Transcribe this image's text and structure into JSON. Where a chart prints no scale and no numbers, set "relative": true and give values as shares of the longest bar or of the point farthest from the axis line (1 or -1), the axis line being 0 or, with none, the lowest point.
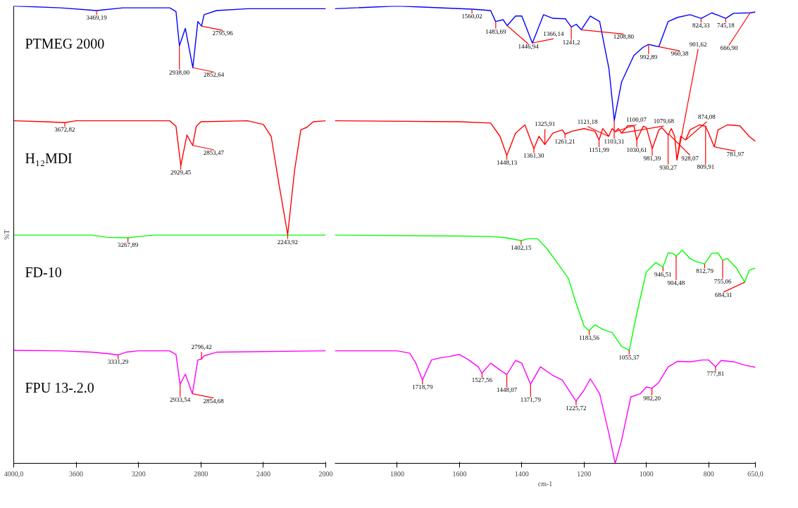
{
  "chart_data": [
    {
      "type": "line",
      "relative": true,
      "ylabel": "%T",
      "xlim": [
        4000,
        2000
      ],
      "xticks": [
        {
          "value": 4000,
          "label": "4000,0"
        },
        3600,
        3200,
        2800,
        2400,
        2000
      ],
      "series": [
        {
          "name": "PTMEG 2000",
          "color": "#0000ff",
          "x": [
            4000,
            3700,
            3469,
            3300,
            3000,
            2960,
            2938,
            2900,
            2852,
            2820,
            2796,
            2780,
            2700,
            2500,
            2000
          ],
          "values": [
            1.0,
            0.996,
            0.99,
            0.996,
            0.996,
            0.988,
            0.913,
            0.951,
            0.865,
            0.966,
            0.956,
            0.981,
            0.99,
            0.994,
            0.994
          ]
        },
        {
          "name": "H₁₂MDI",
          "color": "#ff0000",
          "x": [
            4000,
            3800,
            3673,
            3600,
            3000,
            2960,
            2929,
            2890,
            2853,
            2830,
            2800,
            2500,
            2400,
            2350,
            2300,
            2244,
            2200,
            2160,
            2120,
            2080,
            2000
          ],
          "values": [
            0.749,
            0.747,
            0.745,
            0.749,
            0.749,
            0.737,
            0.651,
            0.718,
            0.695,
            0.737,
            0.747,
            0.749,
            0.741,
            0.715,
            0.611,
            0.5,
            0.64,
            0.729,
            0.735,
            0.747,
            0.749
          ]
        },
        {
          "name": "FD-10",
          "color": "#00ff00",
          "x": [
            4000,
            3500,
            3400,
            3268,
            3200,
            3100,
            2000
          ],
          "values": [
            0.499,
            0.499,
            0.494,
            0.493,
            0.496,
            0.499,
            0.499
          ]
        },
        {
          "name": "FPU 13-.2.0",
          "color": "#ff00ff",
          "x": [
            4000,
            3700,
            3500,
            3400,
            3331,
            3280,
            3200,
            3000,
            2960,
            2934,
            2900,
            2855,
            2820,
            2796,
            2780,
            2700,
            2000
          ],
          "values": [
            0.247,
            0.246,
            0.243,
            0.24,
            0.237,
            0.243,
            0.246,
            0.246,
            0.238,
            0.173,
            0.195,
            0.152,
            0.226,
            0.228,
            0.235,
            0.243,
            0.246
          ]
        }
      ],
      "annotations": [
        {
          "text": "3469,19",
          "x": 3469.19,
          "y": 0.99
        },
        {
          "text": "2938,00",
          "x": 2938.0,
          "y": 0.913
        },
        {
          "text": "2852,64",
          "x": 2852.64,
          "y": 0.865
        },
        {
          "text": "2795,96",
          "x": 2795.96,
          "y": 0.956
        },
        {
          "text": "3672,82",
          "x": 3672.82,
          "y": 0.745
        },
        {
          "text": "2929,45",
          "x": 2929.45,
          "y": 0.651
        },
        {
          "text": "2853,47",
          "x": 2853.47,
          "y": 0.695
        },
        {
          "text": "2243,92",
          "x": 2243.92,
          "y": 0.5
        },
        {
          "text": "3267,89",
          "x": 3267.89,
          "y": 0.493
        },
        {
          "text": "3331,29",
          "x": 3331.29,
          "y": 0.237
        },
        {
          "text": "2933,54",
          "x": 2933.54,
          "y": 0.173
        },
        {
          "text": "2854,68",
          "x": 2854.68,
          "y": 0.152
        },
        {
          "text": "2796,42",
          "x": 2796.42,
          "y": 0.228
        }
      ]
    },
    {
      "type": "line",
      "relative": true,
      "xlabel": "cm-1",
      "xlim": [
        2000,
        650
      ],
      "xticks": [
        1800,
        1600,
        1400,
        1200,
        1000,
        800,
        {
          "value": 650,
          "label": "650,0"
        }
      ],
      "series": [
        {
          "color": "#0000ff",
          "x": [
            2000,
            1800,
            1560,
            1500,
            1484,
            1460,
            1447,
            1420,
            1400,
            1366,
            1330,
            1300,
            1260,
            1241,
            1225,
            1209,
            1180,
            1150,
            1120,
            1103,
            1080,
            1040,
            1010,
            993,
            975,
            960,
            930,
            900,
            860,
            824,
            790,
            745,
            720,
            667,
            650
          ],
          "values": [
            0.994,
            1.0,
            0.993,
            0.99,
            0.966,
            0.97,
            0.957,
            0.978,
            0.978,
            0.919,
            0.981,
            0.973,
            0.972,
            0.954,
            0.96,
            0.948,
            0.978,
            0.966,
            0.862,
            0.75,
            0.833,
            0.892,
            0.91,
            0.916,
            0.913,
            0.911,
            0.966,
            0.975,
            0.981,
            0.973,
            0.985,
            0.973,
            0.984,
            0.985,
            0.987
          ]
        },
        {
          "color": "#ff0000",
          "x": [
            2000,
            1600,
            1500,
            1470,
            1448,
            1420,
            1390,
            1361,
            1345,
            1326,
            1300,
            1270,
            1261,
            1240,
            1200,
            1165,
            1152,
            1140,
            1121,
            1110,
            1100,
            1090,
            1080,
            1060,
            1040,
            1031,
            1010,
            1000,
            981,
            960,
            950,
            930,
            920,
            909,
            902,
            890,
            874,
            860,
            830,
            810,
            800,
            782,
            770,
            740,
            700,
            670,
            650
          ],
          "values": [
            0.749,
            0.747,
            0.744,
            0.715,
            0.673,
            0.722,
            0.74,
            0.688,
            0.715,
            0.697,
            0.722,
            0.729,
            0.72,
            0.726,
            0.732,
            0.726,
            0.707,
            0.732,
            0.715,
            0.732,
            0.725,
            0.732,
            0.722,
            0.738,
            0.738,
            0.707,
            0.737,
            0.734,
            0.688,
            0.729,
            0.734,
            0.718,
            0.732,
            0.715,
            0.663,
            0.715,
            0.707,
            0.729,
            0.74,
            0.737,
            0.722,
            0.692,
            0.729,
            0.74,
            0.738,
            0.715,
            0.704
          ]
        },
        {
          "color": "#00ff00",
          "x": [
            2000,
            1600,
            1500,
            1450,
            1402,
            1380,
            1350,
            1320,
            1280,
            1250,
            1230,
            1200,
            1184,
            1165,
            1140,
            1110,
            1080,
            1055,
            1030,
            1000,
            970,
            955,
            947,
            930,
            915,
            904,
            885,
            860,
            840,
            813,
            790,
            770,
            755,
            740,
            710,
            684,
            670,
            650
          ],
          "values": [
            0.499,
            0.497,
            0.496,
            0.493,
            0.487,
            0.491,
            0.491,
            0.47,
            0.433,
            0.404,
            0.359,
            0.3,
            0.29,
            0.303,
            0.293,
            0.286,
            0.256,
            0.247,
            0.33,
            0.419,
            0.439,
            0.433,
            0.429,
            0.46,
            0.459,
            0.453,
            0.466,
            0.448,
            0.441,
            0.436,
            0.459,
            0.46,
            0.444,
            0.448,
            0.426,
            0.396,
            0.422,
            0.427
          ]
        },
        {
          "color": "#ff00ff",
          "x": [
            2000,
            1800,
            1760,
            1740,
            1719,
            1690,
            1660,
            1630,
            1600,
            1570,
            1540,
            1528,
            1500,
            1470,
            1448,
            1420,
            1400,
            1372,
            1340,
            1300,
            1270,
            1226,
            1200,
            1180,
            1150,
            1120,
            1100,
            1080,
            1050,
            1020,
            1000,
            982,
            960,
            930,
            900,
            860,
            820,
            800,
            778,
            760,
            720,
            680,
            650
          ],
          "values": [
            0.246,
            0.246,
            0.241,
            0.219,
            0.182,
            0.226,
            0.231,
            0.234,
            0.238,
            0.226,
            0.211,
            0.197,
            0.219,
            0.204,
            0.194,
            0.225,
            0.219,
            0.173,
            0.211,
            0.192,
            0.182,
            0.136,
            0.16,
            0.185,
            0.152,
            0.064,
            0.0,
            0.049,
            0.145,
            0.152,
            0.167,
            0.164,
            0.177,
            0.211,
            0.223,
            0.222,
            0.226,
            0.226,
            0.211,
            0.225,
            0.222,
            0.214,
            0.21
          ]
        }
      ],
      "annotations": [
        {
          "text": "1560,02",
          "x": 1560.02,
          "y": 0.993
        },
        {
          "text": "1483,69",
          "x": 1483.69,
          "y": 0.966
        },
        {
          "text": "1446,94",
          "x": 1446.94,
          "y": 0.957
        },
        {
          "text": "1366,14",
          "x": 1366.14,
          "y": 0.919
        },
        {
          "text": "1241,2",
          "x": 1241.2,
          "y": 0.954
        },
        {
          "text": "1208,80",
          "x": 1208.8,
          "y": 0.948
        },
        {
          "text": "1103,31",
          "x": 1103.31,
          "y": 0.75
        },
        {
          "text": "992,89",
          "x": 992.89,
          "y": 0.916
        },
        {
          "text": "960,38",
          "x": 960.38,
          "y": 0.911
        },
        {
          "text": "824,33",
          "x": 824.33,
          "y": 0.973
        },
        {
          "text": "745,18",
          "x": 745.18,
          "y": 0.973
        },
        {
          "text": "666,90",
          "x": 666.9,
          "y": 0.985
        },
        {
          "text": "1448,13",
          "x": 1448.13,
          "y": 0.673
        },
        {
          "text": "1361,30",
          "x": 1361.3,
          "y": 0.688
        },
        {
          "text": "1325,91",
          "x": 1325.91,
          "y": 0.697
        },
        {
          "text": "1261,21",
          "x": 1261.21,
          "y": 0.72
        },
        {
          "text": "1151,99",
          "x": 1151.99,
          "y": 0.707
        },
        {
          "text": "1121,18",
          "x": 1121.18,
          "y": 0.715
        },
        {
          "text": "1100,07",
          "x": 1100.07,
          "y": 0.725
        },
        {
          "text": "1079,68",
          "x": 1079.68,
          "y": 0.722
        },
        {
          "text": "1030,61",
          "x": 1030.61,
          "y": 0.707
        },
        {
          "text": "981,39",
          "x": 981.39,
          "y": 0.688
        },
        {
          "text": "930,27",
          "x": 930.27,
          "y": 0.718
        },
        {
          "text": "928,07",
          "x": 928.07,
          "y": 0.72
        },
        {
          "text": "901,62",
          "x": 901.62,
          "y": 0.663
        },
        {
          "text": "874,08",
          "x": 874.08,
          "y": 0.707
        },
        {
          "text": "809,91",
          "x": 809.91,
          "y": 0.737
        },
        {
          "text": "781,97",
          "x": 781.97,
          "y": 0.692
        },
        {
          "text": "1402,15",
          "x": 1402.15,
          "y": 0.487
        },
        {
          "text": "1183,56",
          "x": 1183.56,
          "y": 0.29
        },
        {
          "text": "1055,37",
          "x": 1055.37,
          "y": 0.247
        },
        {
          "text": "946,51",
          "x": 946.51,
          "y": 0.429
        },
        {
          "text": "904,48",
          "x": 904.48,
          "y": 0.453
        },
        {
          "text": "812,79",
          "x": 812.79,
          "y": 0.436
        },
        {
          "text": "755,06",
          "x": 755.06,
          "y": 0.444
        },
        {
          "text": "684,31",
          "x": 684.31,
          "y": 0.396
        },
        {
          "text": "1718,79",
          "x": 1718.79,
          "y": 0.182
        },
        {
          "text": "1527,56",
          "x": 1527.56,
          "y": 0.197
        },
        {
          "text": "1448,07",
          "x": 1448.07,
          "y": 0.194
        },
        {
          "text": "1371,79",
          "x": 1371.79,
          "y": 0.173
        },
        {
          "text": "1225,72",
          "x": 1225.72,
          "y": 0.136
        },
        {
          "text": "982,20",
          "x": 982.2,
          "y": 0.164
        },
        {
          "text": "777,81",
          "x": 777.81,
          "y": 0.211
        }
      ]
    }
  ]
}
